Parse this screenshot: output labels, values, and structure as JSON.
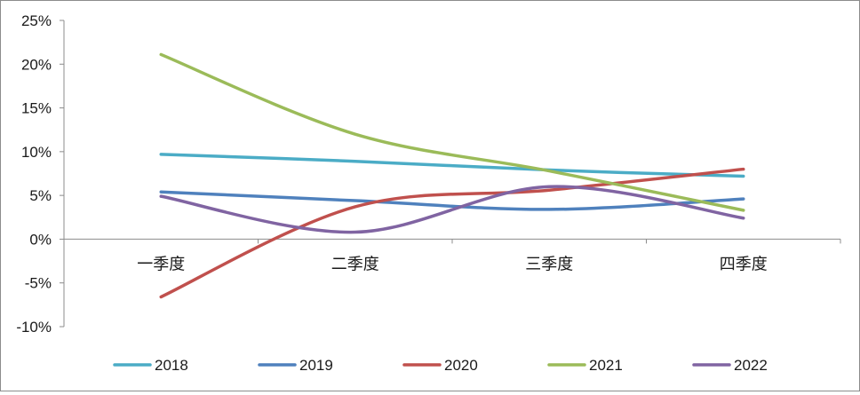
{
  "chart_data": {
    "type": "line",
    "categories": [
      "一季度",
      "二季度",
      "三季度",
      "四季度"
    ],
    "y_ticks": [
      "25%",
      "20%",
      "15%",
      "10%",
      "5%",
      "0%",
      "-5%",
      "-10%"
    ],
    "ylim": [
      -10,
      25
    ],
    "y_unit": "%",
    "smooth": true,
    "grid": false,
    "legend_position": "bottom",
    "series": [
      {
        "name": "2018",
        "color": "#4bacc6",
        "values": [
          9.7,
          8.9,
          7.9,
          7.2
        ]
      },
      {
        "name": "2019",
        "color": "#4f81bd",
        "values": [
          5.4,
          4.4,
          3.4,
          4.6
        ]
      },
      {
        "name": "2020",
        "color": "#c0504d",
        "values": [
          -6.6,
          3.7,
          5.6,
          8.0
        ]
      },
      {
        "name": "2021",
        "color": "#9bbb59",
        "values": [
          21.1,
          12.0,
          7.8,
          3.3
        ]
      },
      {
        "name": "2022",
        "color": "#8064a2",
        "values": [
          4.9,
          0.8,
          6.0,
          2.4
        ]
      }
    ]
  }
}
